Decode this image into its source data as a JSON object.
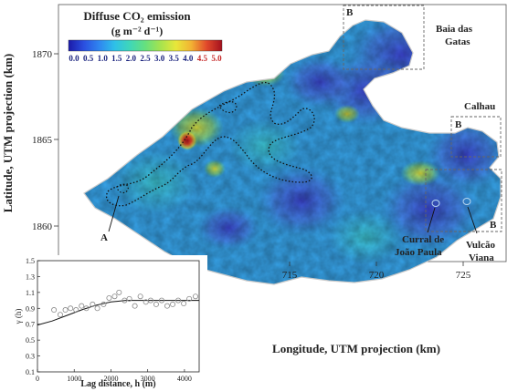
{
  "legend": {
    "title_line1": "Diffuse CO₂ emission",
    "title_line2": "(g m⁻² d⁻¹)",
    "ticks": [
      "0.0",
      "0.5",
      "1.0",
      "1.5",
      "2.0",
      "2.5",
      "3.0",
      "3.5",
      "4.0",
      "4.5",
      "5.0"
    ],
    "tick_colors": [
      "#1a237e",
      "#1a237e",
      "#1a237e",
      "#1a237e",
      "#1a237e",
      "#1a237e",
      "#1a237e",
      "#1a237e",
      "#1a237e",
      "#c62828",
      "#c62828"
    ],
    "gradient": [
      "#1b1aa8",
      "#2a4fe0",
      "#2f86f0",
      "#2ec0e8",
      "#3fd7b8",
      "#66e07e",
      "#a6e34e",
      "#e8e73a",
      "#f2b233",
      "#e1492b",
      "#a3101e"
    ]
  },
  "axes": {
    "xlabel": "Longitude, UTM projection (km)",
    "ylabel": "Latitude, UTM projection (km)",
    "xticks": [
      "715",
      "720",
      "725"
    ],
    "yticks": [
      "1870",
      "1865",
      "1860"
    ]
  },
  "annotations": {
    "baia_line1": "Baia das",
    "baia_line2": "Gatas",
    "calhau": "Calhau",
    "box_b1": "B",
    "box_b2": "B",
    "box_b3": "B",
    "label_a": "A",
    "curral_line1": "Curral de",
    "curral_line2": "João Paula",
    "vulcao_line1": "Vulcão",
    "vulcao_line2": "Viana"
  },
  "chart_data": {
    "type": "scatter",
    "title": "",
    "xlabel": "Lag distance, h (m)",
    "ylabel": "γ (h)",
    "xlim": [
      0,
      4400
    ],
    "ylim": [
      0.1,
      1.5
    ],
    "xticks": [
      "0",
      "1000",
      "2000",
      "3000",
      "4000"
    ],
    "yticks": [
      "0.1",
      "0.3",
      "0.5",
      "0.7",
      "0.9",
      "1.1",
      "1.3",
      "1.5"
    ],
    "points": [
      {
        "x": 450,
        "y": 0.88
      },
      {
        "x": 620,
        "y": 0.82
      },
      {
        "x": 760,
        "y": 0.88
      },
      {
        "x": 900,
        "y": 0.9
      },
      {
        "x": 1050,
        "y": 0.88
      },
      {
        "x": 1200,
        "y": 0.93
      },
      {
        "x": 1330,
        "y": 0.9
      },
      {
        "x": 1500,
        "y": 0.95
      },
      {
        "x": 1630,
        "y": 0.9
      },
      {
        "x": 1800,
        "y": 0.95
      },
      {
        "x": 1950,
        "y": 1.03
      },
      {
        "x": 2100,
        "y": 1.05
      },
      {
        "x": 2220,
        "y": 1.1
      },
      {
        "x": 2370,
        "y": 1.0
      },
      {
        "x": 2500,
        "y": 1.02
      },
      {
        "x": 2650,
        "y": 0.93
      },
      {
        "x": 2800,
        "y": 1.05
      },
      {
        "x": 2950,
        "y": 0.98
      },
      {
        "x": 3080,
        "y": 1.0
      },
      {
        "x": 3230,
        "y": 0.95
      },
      {
        "x": 3380,
        "y": 1.0
      },
      {
        "x": 3530,
        "y": 0.93
      },
      {
        "x": 3680,
        "y": 0.95
      },
      {
        "x": 3830,
        "y": 1.0
      },
      {
        "x": 3980,
        "y": 0.96
      },
      {
        "x": 4130,
        "y": 1.02
      },
      {
        "x": 4300,
        "y": 1.05
      }
    ],
    "model_curve": [
      {
        "x": 0,
        "y": 0.69
      },
      {
        "x": 400,
        "y": 0.74
      },
      {
        "x": 800,
        "y": 0.81
      },
      {
        "x": 1200,
        "y": 0.88
      },
      {
        "x": 1600,
        "y": 0.94
      },
      {
        "x": 2000,
        "y": 0.98
      },
      {
        "x": 2400,
        "y": 1.0
      },
      {
        "x": 3000,
        "y": 1.0
      },
      {
        "x": 3600,
        "y": 1.0
      },
      {
        "x": 4400,
        "y": 1.0
      }
    ]
  }
}
